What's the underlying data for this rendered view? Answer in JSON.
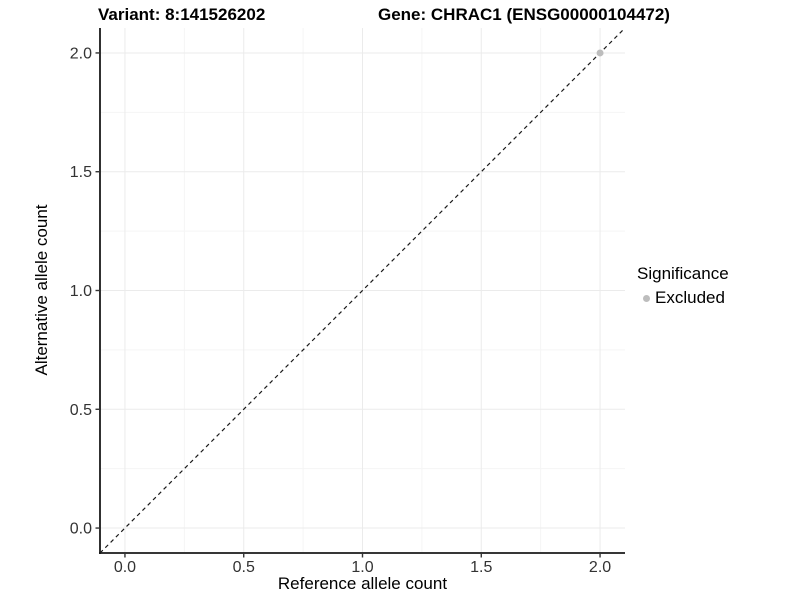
{
  "chart_data": {
    "type": "scatter",
    "title_left": "Variant: 8:141526202",
    "title_right": "Gene: CHRAC1 (ENSG00000104472)",
    "xlabel": "Reference allele count",
    "ylabel": "Alternative allele count",
    "xlim": [
      -0.105,
      2.105
    ],
    "ylim": [
      -0.105,
      2.105
    ],
    "x_ticks": {
      "values": [
        0,
        0.5,
        1,
        1.5,
        2
      ],
      "labels": [
        "0.0",
        "0.5",
        "1.0",
        "1.5",
        "2.0"
      ]
    },
    "y_ticks": {
      "values": [
        0,
        0.5,
        1,
        1.5,
        2
      ],
      "labels": [
        "0.0",
        "0.5",
        "1.0",
        "1.5",
        "2.0"
      ]
    },
    "minor_tick_values": [
      0.25,
      0.75,
      1.25,
      1.75
    ],
    "grid": "major+minor",
    "reference_line": {
      "kind": "abline",
      "slope": 1,
      "intercept": 0,
      "style": "dashed",
      "color": "#1a1a1a"
    },
    "series": [
      {
        "name": "Excluded",
        "marker": "circle",
        "color": "#bdbdbd",
        "points": [
          {
            "x": 2.0,
            "y": 2.0
          }
        ]
      }
    ],
    "legend": {
      "title": "Significance",
      "position": "right",
      "items": [
        {
          "label": "Excluded",
          "color": "#bdbdbd",
          "marker": "circle"
        }
      ]
    },
    "style_colors": {
      "grid_major": "#ebebeb",
      "grid_minor": "#f5f5f5",
      "axis_line": "#1a1a1a",
      "tick_mark": "#333333",
      "tick_label": "#333333"
    }
  }
}
